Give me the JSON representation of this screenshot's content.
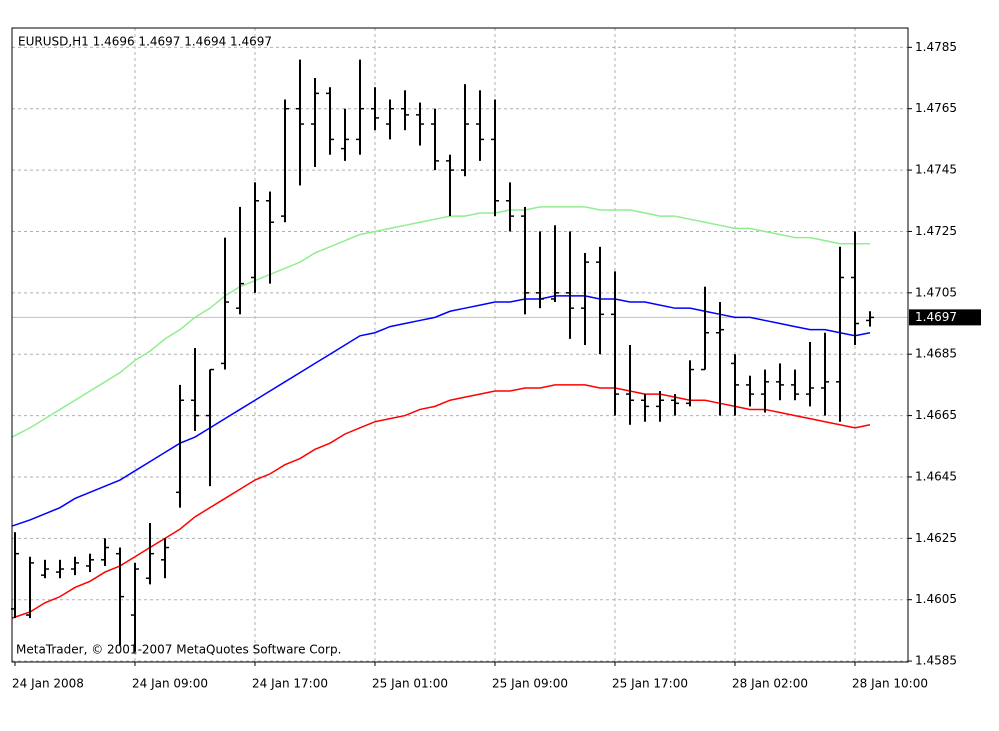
{
  "chart_data": {
    "type": "ohlc",
    "title": "EURUSD,H1  1.4696 1.4697 1.4694 1.4697",
    "watermark": "MetaTrader, © 2001-2007 MetaQuotes Software Corp.",
    "categories": [
      "24 Jan 2008",
      null,
      null,
      null,
      null,
      null,
      null,
      null,
      "24 Jan 09:00",
      null,
      null,
      null,
      null,
      null,
      null,
      null,
      "24 Jan 17:00",
      null,
      null,
      null,
      null,
      null,
      null,
      null,
      "25 Jan 01:00",
      null,
      null,
      null,
      null,
      null,
      null,
      null,
      "25 Jan 09:00",
      null,
      null,
      null,
      null,
      null,
      null,
      null,
      "25 Jan 17:00",
      null,
      null,
      null,
      null,
      null,
      null,
      null,
      "28 Jan 02:00",
      null,
      null,
      null,
      null,
      null,
      null,
      null,
      "28 Jan 10:00",
      null
    ],
    "ohlc": {
      "color": "#000000",
      "open": [
        1.4602,
        1.46,
        1.4613,
        1.4614,
        1.4615,
        1.4616,
        1.4618,
        1.462,
        1.46,
        1.4612,
        1.4618,
        1.464,
        1.467,
        1.4665,
        1.4682,
        1.47,
        1.471,
        1.4735,
        1.473,
        1.4765,
        1.476,
        1.477,
        1.4752,
        1.4755,
        1.4765,
        1.476,
        1.4765,
        1.4763,
        1.476,
        1.4748,
        1.4745,
        1.476,
        1.4755,
        1.4735,
        1.473,
        1.4705,
        1.4703,
        1.4705,
        1.47,
        1.4715,
        1.4698,
        1.4672,
        1.467,
        1.4668,
        1.467,
        1.4669,
        1.468,
        1.4692,
        1.4682,
        1.4675,
        1.4672,
        1.4676,
        1.4675,
        1.4672,
        1.4674,
        1.4676,
        1.471,
        1.4696
      ],
      "high": [
        1.4627,
        1.4619,
        1.4618,
        1.4618,
        1.4619,
        1.462,
        1.4625,
        1.4622,
        1.4617,
        1.463,
        1.4625,
        1.4675,
        1.4687,
        1.468,
        1.4723,
        1.4733,
        1.4741,
        1.4738,
        1.4768,
        1.4781,
        1.4775,
        1.4772,
        1.4765,
        1.4781,
        1.4772,
        1.4768,
        1.4771,
        1.4767,
        1.4765,
        1.475,
        1.4773,
        1.4771,
        1.4768,
        1.4741,
        1.4733,
        1.4725,
        1.4727,
        1.4725,
        1.4718,
        1.472,
        1.4712,
        1.4688,
        1.4672,
        1.4673,
        1.4672,
        1.4683,
        1.4707,
        1.4702,
        1.4685,
        1.4678,
        1.468,
        1.4682,
        1.468,
        1.4689,
        1.4692,
        1.472,
        1.4725,
        1.4699
      ],
      "low": [
        1.4599,
        1.4599,
        1.4612,
        1.4612,
        1.4613,
        1.4614,
        1.4616,
        1.459,
        1.4588,
        1.461,
        1.4612,
        1.4635,
        1.466,
        1.4642,
        1.468,
        1.4698,
        1.4705,
        1.4708,
        1.4728,
        1.474,
        1.4746,
        1.475,
        1.4748,
        1.475,
        1.4758,
        1.4755,
        1.4758,
        1.4753,
        1.4745,
        1.473,
        1.4743,
        1.4748,
        1.473,
        1.4725,
        1.4698,
        1.47,
        1.4702,
        1.469,
        1.4688,
        1.4685,
        1.4665,
        1.4662,
        1.4663,
        1.4663,
        1.4665,
        1.4668,
        1.468,
        1.4665,
        1.4665,
        1.4668,
        1.4666,
        1.467,
        1.467,
        1.4668,
        1.4665,
        1.4663,
        1.4688,
        1.4694
      ],
      "close": [
        1.462,
        1.4617,
        1.4615,
        1.4615,
        1.4617,
        1.4618,
        1.4622,
        1.4606,
        1.4615,
        1.462,
        1.4622,
        1.467,
        1.4665,
        1.468,
        1.4702,
        1.4708,
        1.4735,
        1.4728,
        1.4765,
        1.476,
        1.477,
        1.4755,
        1.4755,
        1.4765,
        1.4762,
        1.4765,
        1.4763,
        1.476,
        1.4748,
        1.4745,
        1.476,
        1.4755,
        1.4735,
        1.473,
        1.4705,
        1.4703,
        1.4705,
        1.47,
        1.4715,
        1.4698,
        1.4672,
        1.467,
        1.4668,
        1.467,
        1.4669,
        1.468,
        1.4692,
        1.4693,
        1.4675,
        1.4672,
        1.4676,
        1.4675,
        1.4672,
        1.4674,
        1.4676,
        1.471,
        1.4695,
        1.4697
      ]
    },
    "bands": [
      {
        "color": "#90ee90",
        "values": [
          1.4658,
          1.4661,
          1.4664,
          1.4667,
          1.467,
          1.4673,
          1.4676,
          1.4679,
          1.4683,
          1.4686,
          1.469,
          1.4693,
          1.4697,
          1.47,
          1.4704,
          1.4707,
          1.4709,
          1.4711,
          1.4713,
          1.4715,
          1.4718,
          1.472,
          1.4722,
          1.4724,
          1.4725,
          1.4726,
          1.4727,
          1.4728,
          1.4729,
          1.473,
          1.473,
          1.4731,
          1.4731,
          1.4732,
          1.4732,
          1.4733,
          1.4733,
          1.4733,
          1.4733,
          1.4732,
          1.4732,
          1.4732,
          1.4731,
          1.473,
          1.473,
          1.4729,
          1.4728,
          1.4727,
          1.4726,
          1.4726,
          1.4725,
          1.4724,
          1.4723,
          1.4723,
          1.4722,
          1.4721,
          1.4721,
          1.4721
        ]
      },
      {
        "color": "#0000ff",
        "values": [
          1.4629,
          1.4631,
          1.4633,
          1.4635,
          1.4638,
          1.464,
          1.4642,
          1.4644,
          1.4647,
          1.465,
          1.4653,
          1.4656,
          1.4658,
          1.4661,
          1.4664,
          1.4667,
          1.467,
          1.4673,
          1.4676,
          1.4679,
          1.4682,
          1.4685,
          1.4688,
          1.4691,
          1.4692,
          1.4694,
          1.4695,
          1.4696,
          1.4697,
          1.4699,
          1.47,
          1.4701,
          1.4702,
          1.4702,
          1.4703,
          1.4703,
          1.4704,
          1.4704,
          1.4704,
          1.4703,
          1.4703,
          1.4702,
          1.4702,
          1.4701,
          1.47,
          1.47,
          1.4699,
          1.4698,
          1.4697,
          1.4697,
          1.4696,
          1.4695,
          1.4694,
          1.4693,
          1.4693,
          1.4692,
          1.4691,
          1.4692
        ]
      },
      {
        "color": "#ff0000",
        "values": [
          1.4599,
          1.4601,
          1.4604,
          1.4606,
          1.4609,
          1.4611,
          1.4614,
          1.4616,
          1.4619,
          1.4622,
          1.4625,
          1.4628,
          1.4632,
          1.4635,
          1.4638,
          1.4641,
          1.4644,
          1.4646,
          1.4649,
          1.4651,
          1.4654,
          1.4656,
          1.4659,
          1.4661,
          1.4663,
          1.4664,
          1.4665,
          1.4667,
          1.4668,
          1.467,
          1.4671,
          1.4672,
          1.4673,
          1.4673,
          1.4674,
          1.4674,
          1.4675,
          1.4675,
          1.4675,
          1.4674,
          1.4674,
          1.4673,
          1.4672,
          1.4672,
          1.4671,
          1.467,
          1.467,
          1.4669,
          1.4668,
          1.4667,
          1.4667,
          1.4666,
          1.4665,
          1.4664,
          1.4663,
          1.4662,
          1.4661,
          1.4662
        ]
      }
    ],
    "current_price": 1.4697,
    "ylim": [
      1.45847,
      1.47913
    ],
    "yticks": [
      1.4585,
      1.4605,
      1.4625,
      1.4645,
      1.4665,
      1.4685,
      1.4705,
      1.4725,
      1.4745,
      1.4765,
      1.4785
    ],
    "grid": true
  }
}
